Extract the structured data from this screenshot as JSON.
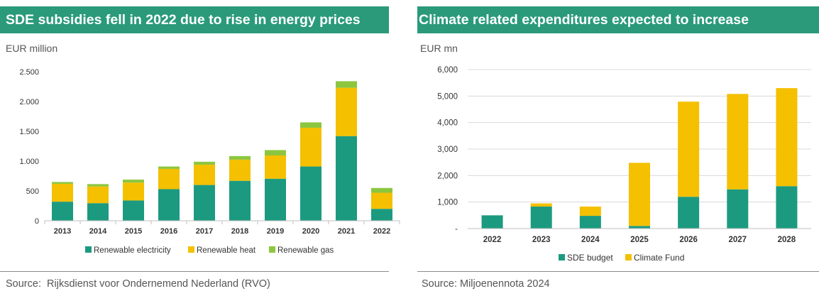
{
  "colors": {
    "green": "#1c9a80",
    "yellow": "#f4c000",
    "lightgreen": "#8cc63f",
    "title_bg": "#2a9a7a"
  },
  "left": {
    "title": "SDE subsidies fell in 2022 due to rise in energy prices",
    "unit": "EUR million",
    "source": "Source:  Rijksdienst voor Ondernemend Nederland (RVO)"
  },
  "right": {
    "title": "Climate related expenditures expected to increase",
    "unit": "EUR mn",
    "source": "Source: Miljoenennota 2024"
  },
  "chart_data": [
    {
      "type": "bar",
      "stacked": true,
      "title": "SDE subsidies fell in 2022 due to rise in energy prices",
      "ylabel": "EUR million",
      "ylim": [
        0,
        2500
      ],
      "yticks": [
        0,
        500,
        1000,
        1500,
        2000,
        2500
      ],
      "ytick_labels": [
        "0",
        "500",
        "1.000",
        "1.500",
        "2.000",
        "2.500"
      ],
      "categories": [
        "2013",
        "2014",
        "2015",
        "2016",
        "2017",
        "2018",
        "2019",
        "2020",
        "2021",
        "2022"
      ],
      "series": [
        {
          "name": "Renewable electricity",
          "color": "#1c9a80",
          "values": [
            320,
            295,
            340,
            530,
            600,
            670,
            705,
            910,
            1420,
            200
          ]
        },
        {
          "name": "Renewable heat",
          "color": "#f4c000",
          "values": [
            300,
            280,
            300,
            340,
            340,
            355,
            390,
            650,
            810,
            270
          ]
        },
        {
          "name": "Renewable gas",
          "color": "#8cc63f",
          "values": [
            30,
            40,
            50,
            40,
            50,
            60,
            90,
            90,
            110,
            80
          ]
        }
      ],
      "legend": "bottom",
      "grid": false
    },
    {
      "type": "bar",
      "stacked": true,
      "title": "Climate related expenditures expected to increase",
      "ylabel": "EUR mn",
      "ylim": [
        0,
        6000
      ],
      "yticks": [
        0,
        1000,
        2000,
        3000,
        4000,
        5000,
        6000
      ],
      "ytick_labels": [
        "-",
        "1,000",
        "2,000",
        "3,000",
        "4,000",
        "5,000",
        "6,000"
      ],
      "categories": [
        "2022",
        "2023",
        "2024",
        "2025",
        "2026",
        "2027",
        "2028"
      ],
      "series": [
        {
          "name": "SDE budget",
          "color": "#1c9a80",
          "values": [
            500,
            830,
            480,
            100,
            1200,
            1480,
            1600
          ]
        },
        {
          "name": "Climate Fund",
          "color": "#f4c000",
          "values": [
            0,
            120,
            350,
            2380,
            3590,
            3600,
            3700
          ]
        }
      ],
      "legend": "bottom",
      "grid": true
    }
  ]
}
